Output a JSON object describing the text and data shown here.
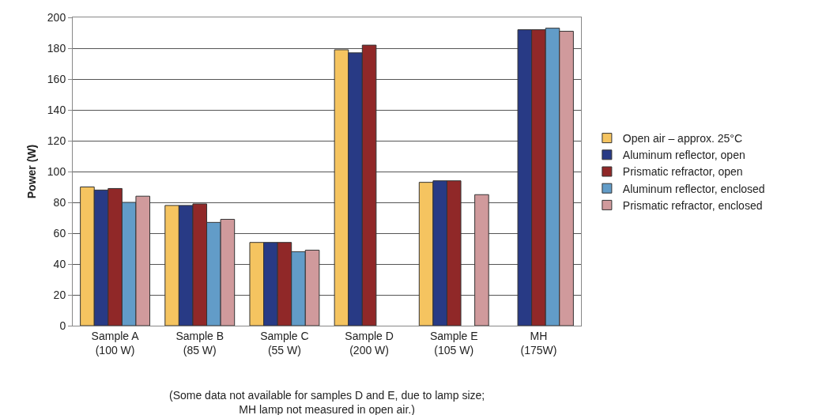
{
  "chart_data": {
    "type": "bar",
    "ylabel": "Power (W)",
    "categories": [
      "Sample A\n(100 W)",
      "Sample B\n(85 W)",
      "Sample C\n(55 W)",
      "Sample D\n(200 W)",
      "Sample E\n(105 W)",
      "MH\n(175W)"
    ],
    "series": [
      {
        "name": "Open air – approx. 25°C",
        "color": "#f5c460",
        "values": [
          90,
          78,
          54,
          179,
          93,
          null
        ]
      },
      {
        "name": "Aluminum reflector, open",
        "color": "#283a85",
        "values": [
          88,
          78,
          54,
          177,
          94,
          192
        ]
      },
      {
        "name": "Prismatic refractor, open",
        "color": "#902828",
        "values": [
          89,
          79,
          54,
          182,
          94,
          192
        ]
      },
      {
        "name": "Aluminum reflector, enclosed",
        "color": "#629cc8",
        "values": [
          80,
          67,
          48,
          null,
          null,
          193
        ]
      },
      {
        "name": "Prismatic refractor, enclosed",
        "color": "#d09a9c",
        "values": [
          84,
          69,
          49,
          null,
          85,
          191
        ]
      }
    ],
    "ylim": [
      0,
      200
    ],
    "yticks": [
      0,
      20,
      40,
      60,
      80,
      100,
      120,
      140,
      160,
      180,
      200
    ],
    "grid": "y",
    "legend": "right",
    "annotations": [
      "(Some data not available for samples D and E, due to lamp size;\nMH lamp not measured in open air.)"
    ]
  }
}
